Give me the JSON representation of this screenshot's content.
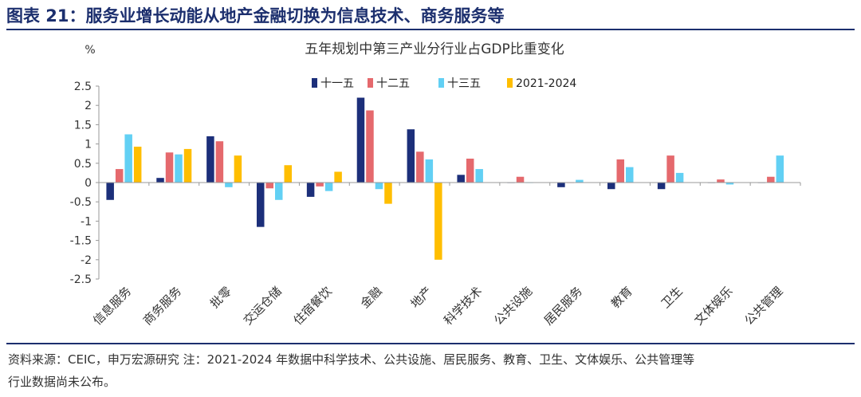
{
  "figure": {
    "title": "图表 21：服务业增长动能从地产金融切换为信息技术、商务服务等",
    "note_line1": "资料来源：CEIC，申万宏源研究  注：2021-2024 年数据中科学技术、公共设施、居民服务、教育、卫生、文体娱乐、公共管理等",
    "note_line2": "行业数据尚未公布。"
  },
  "colors": {
    "title": "#1c2f6e",
    "rule": "#1c2f6e",
    "series": [
      "#1c2f7a",
      "#e5696d",
      "#62d0f4",
      "#ffbe00"
    ]
  },
  "chart_data": {
    "type": "bar",
    "title": "五年规划中第三产业分行业占GDP比重变化",
    "ylabel": "%",
    "ylim": [
      -2.5,
      2.5
    ],
    "ytick_step": 0.5,
    "ytick_labels": [
      "2.5",
      "2",
      "1.5",
      "1",
      "0.5",
      "0",
      "-0.5",
      "-1",
      "-1.5",
      "-2",
      "-2.5"
    ],
    "legend_position": "top",
    "grid": false,
    "categories": [
      "信息服务",
      "商务服务",
      "批零",
      "交运仓储",
      "住宿餐饮",
      "金融",
      "地产",
      "科学技术",
      "公共设施",
      "居民服务",
      "教育",
      "卫生",
      "文体娱乐",
      "公共管理"
    ],
    "series": [
      {
        "name": "十一五",
        "values": [
          -0.45,
          0.12,
          1.2,
          -1.15,
          -0.37,
          2.2,
          1.38,
          0.2,
          0,
          -0.12,
          -0.17,
          -0.17,
          0,
          0
        ]
      },
      {
        "name": "十二五",
        "values": [
          0.35,
          0.78,
          1.07,
          -0.15,
          -0.1,
          1.87,
          0.8,
          0.62,
          0.15,
          0,
          0.6,
          0.7,
          0.08,
          0.15
        ]
      },
      {
        "name": "十三五",
        "values": [
          1.25,
          0.73,
          -0.12,
          -0.45,
          -0.22,
          -0.17,
          0.6,
          0.35,
          0,
          0.07,
          0.4,
          0.25,
          -0.05,
          0.7
        ]
      },
      {
        "name": "2021-2024",
        "values": [
          0.93,
          0.87,
          0.7,
          0.45,
          0.28,
          -0.55,
          -2.0,
          null,
          null,
          null,
          null,
          null,
          null,
          null
        ]
      }
    ]
  }
}
